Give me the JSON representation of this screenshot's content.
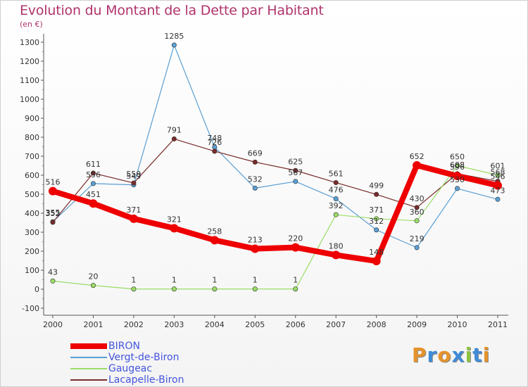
{
  "header": {
    "title": "Evolution du Montant de la Dette par Habitant",
    "unit": "(en €)"
  },
  "brand": {
    "letters": [
      "P",
      "r",
      "o",
      "x",
      "i",
      "t",
      "i"
    ],
    "colors": [
      "#e5932b",
      "#3f8bd8",
      "#e5932b",
      "#3f8bd8",
      "#8cc43f",
      "#3f8bd8",
      "#e5932b"
    ]
  },
  "chart_data": {
    "type": "line",
    "title": "Evolution du Montant de la Dette par Habitant",
    "ylabel": "(en €)",
    "xlabel": "",
    "x": [
      "2000",
      "2001",
      "2002",
      "2003",
      "2004",
      "2005",
      "2006",
      "2007",
      "2008",
      "2009",
      "2010",
      "2011"
    ],
    "ylim": [
      -100,
      1300
    ],
    "yticks": [
      -100,
      0,
      100,
      200,
      300,
      400,
      500,
      600,
      700,
      800,
      900,
      1000,
      1100,
      1200,
      1300
    ],
    "grid": false,
    "legend_position": "bottom-left",
    "series": [
      {
        "name": "BIRON",
        "color": "#ee0000",
        "width": 8,
        "values": [
          516,
          451,
          371,
          321,
          258,
          213,
          220,
          180,
          148,
          652,
          596,
          546
        ],
        "labels": [
          "516",
          "451",
          "371",
          "321",
          "258",
          "213",
          "220",
          "180",
          "148",
          "652",
          "596",
          "546"
        ]
      },
      {
        "name": "Vergt-de-Biron",
        "color": "#5a9fd4",
        "width": 1.2,
        "values": [
          355,
          556,
          549,
          1285,
          748,
          532,
          567,
          476,
          312,
          219,
          530,
          473
        ],
        "labels": [
          "355",
          "556",
          "549",
          "1285",
          "748",
          "532",
          "567",
          "476",
          "312",
          "219",
          "530",
          "473"
        ]
      },
      {
        "name": "Gaugeac",
        "color": "#99dd66",
        "width": 1.2,
        "values": [
          43,
          20,
          1,
          1,
          1,
          1,
          1,
          392,
          371,
          360,
          650,
          601
        ],
        "labels": [
          "43",
          "20",
          "1",
          "1",
          "1",
          "1",
          "1",
          "392",
          "371",
          "360",
          "650",
          "601"
        ]
      },
      {
        "name": "Lacapelle-Biron",
        "color": "#7a2a2a",
        "width": 1.2,
        "values": [
          352,
          611,
          559,
          791,
          726,
          669,
          625,
          561,
          499,
          430,
          608,
          568
        ],
        "labels": [
          "352",
          "611",
          "559",
          "791",
          "726",
          "669",
          "625",
          "561",
          "499",
          "430",
          "608",
          "568"
        ]
      }
    ]
  }
}
